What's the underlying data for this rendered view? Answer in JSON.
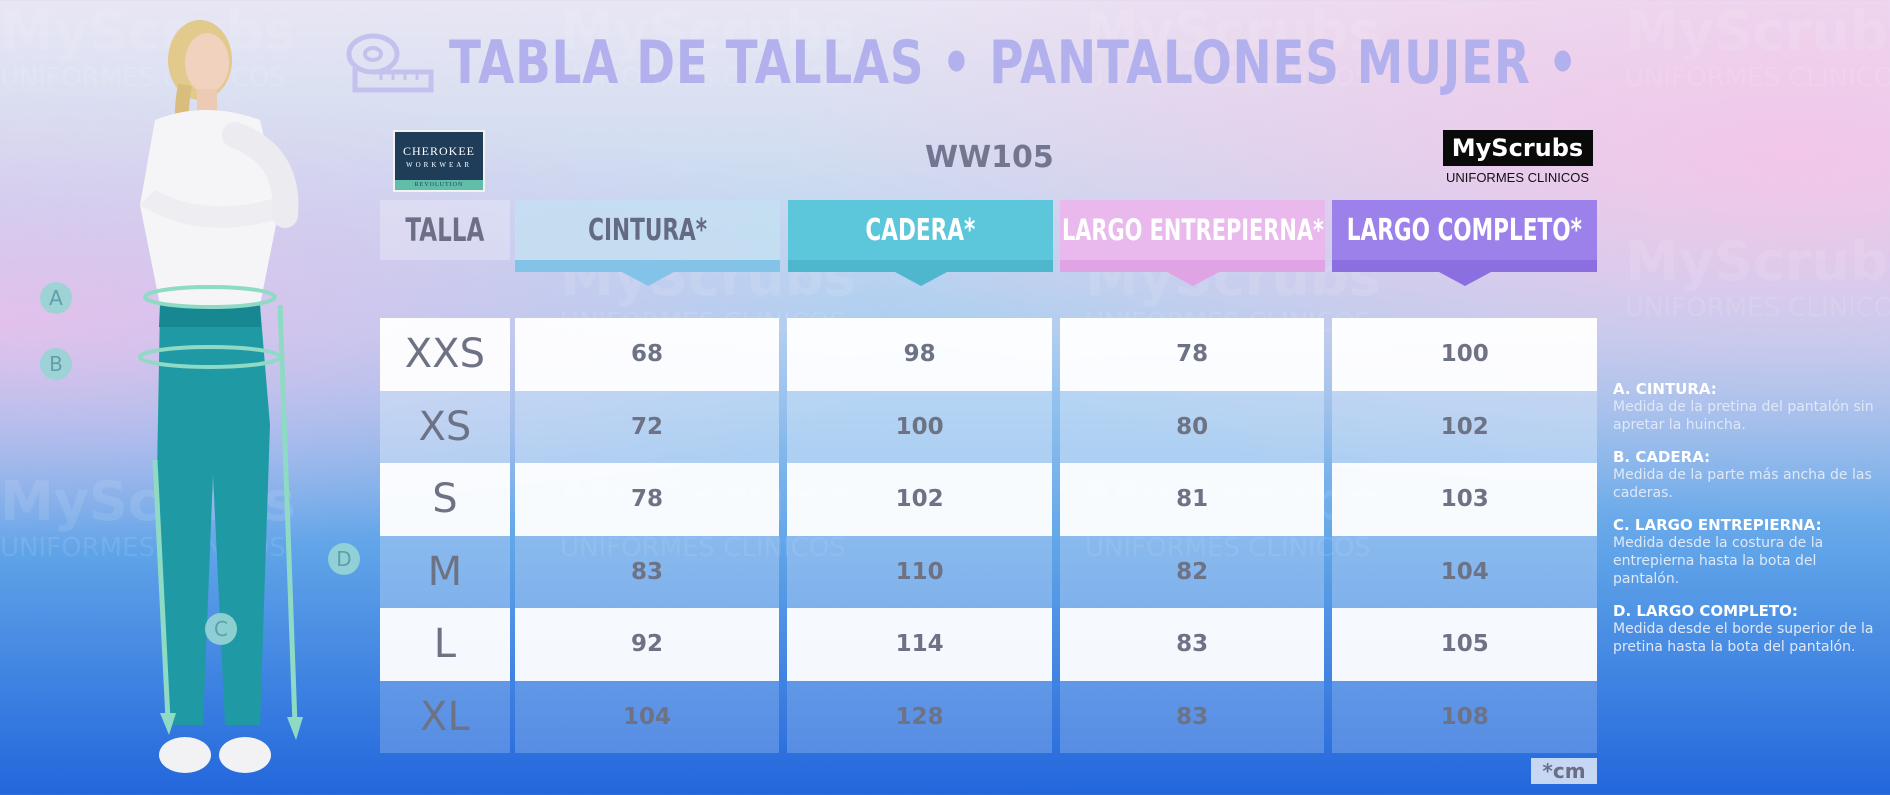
{
  "title": {
    "main": "TABLA DE TALLAS • PANTALONES MUJER •"
  },
  "logos": {
    "cherokee": {
      "line1": "CHEROKEE",
      "line2": "WORKWEAR",
      "line3": "REVOLUTION"
    },
    "myscrubs": {
      "brand": "MyScrubs",
      "subtitle": "UNIFORMES CLINICOS"
    }
  },
  "model_code": "WW105",
  "watermark": {
    "brand": "MyScrubs",
    "subtitle": "UNIFORMES CLINICOS"
  },
  "table": {
    "headers": {
      "size": "TALLA",
      "cintura": "CINTURA*",
      "cadera": "CADERA*",
      "largo_entrepierna": "LARGO ENTREPIERNA*",
      "largo_completo": "LARGO COMPLETO*"
    },
    "rows": [
      {
        "size": "XXS",
        "cintura": "68",
        "cadera": "98",
        "largo_entrepierna": "78",
        "largo_completo": "100"
      },
      {
        "size": "XS",
        "cintura": "72",
        "cadera": "100",
        "largo_entrepierna": "80",
        "largo_completo": "102"
      },
      {
        "size": "S",
        "cintura": "78",
        "cadera": "102",
        "largo_entrepierna": "81",
        "largo_completo": "103"
      },
      {
        "size": "M",
        "cintura": "83",
        "cadera": "110",
        "largo_entrepierna": "82",
        "largo_completo": "104"
      },
      {
        "size": "L",
        "cintura": "92",
        "cadera": "114",
        "largo_entrepierna": "83",
        "largo_completo": "105"
      },
      {
        "size": "XL",
        "cintura": "104",
        "cadera": "128",
        "largo_entrepierna": "83",
        "largo_completo": "108"
      }
    ],
    "unit_note": "*cm"
  },
  "legend": [
    {
      "title": "A. CINTURA:",
      "text": "Medida de la pretina del pantalón sin apretar la huincha."
    },
    {
      "title": "B. CADERA:",
      "text": "Medida de la parte más ancha de las caderas."
    },
    {
      "title": "C. LARGO ENTREPIERNA:",
      "text": "Medida desde la costura de la entrepierna hasta la bota del pantalón."
    },
    {
      "title": "D. LARGO COMPLETO:",
      "text": "Medida desde el borde superior de la pretina hasta la bota del pantalón."
    }
  ],
  "markers": [
    "A",
    "B",
    "C",
    "D"
  ],
  "colors": {
    "cintura": "#83c3e7",
    "cadera": "#5cc7da",
    "largo_entrepierna": "#e9b9ed",
    "largo_completo": "#9d81eb",
    "title": "#b3b0ee"
  }
}
